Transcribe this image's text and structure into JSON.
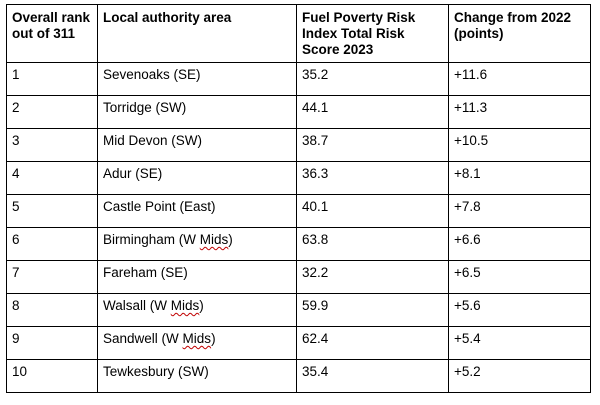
{
  "table": {
    "headers": [
      "Overall rank out of 311",
      "Local authority area",
      "Fuel Poverty Risk Index Total Risk Score 2023",
      "Change from 2022 (points)"
    ],
    "rows": [
      {
        "rank": "1",
        "area_name": "Sevenoaks",
        "area_suffix": " (SE)",
        "area_mark": "",
        "area_tail": "",
        "score": "35.2",
        "change": "+11.6"
      },
      {
        "rank": "2",
        "area_name": "Torridge",
        "area_suffix": " (SW)",
        "area_mark": "",
        "area_tail": "",
        "score": "44.1",
        "change": "+11.3"
      },
      {
        "rank": "3",
        "area_name": "Mid Devon",
        "area_suffix": " (SW)",
        "area_mark": "",
        "area_tail": "",
        "score": "38.7",
        "change": "+10.5"
      },
      {
        "rank": "4",
        "area_name": "Adur",
        "area_suffix": " (SE)",
        "area_mark": "",
        "area_tail": "",
        "score": "36.3",
        "change": "+8.1"
      },
      {
        "rank": "5",
        "area_name": "Castle Point",
        "area_suffix": " (East)",
        "area_mark": "",
        "area_tail": "",
        "score": "40.1",
        "change": "+7.8"
      },
      {
        "rank": "6",
        "area_name": "Birmingham",
        "area_suffix": " (W ",
        "area_mark": "Mids",
        "area_tail": ")",
        "score": "63.8",
        "change": "+6.6"
      },
      {
        "rank": "7",
        "area_name": "Fareham",
        "area_suffix": " (SE)",
        "area_mark": "",
        "area_tail": "",
        "score": "32.2",
        "change": "+6.5"
      },
      {
        "rank": "8",
        "area_name": "Walsall",
        "area_suffix": " (W ",
        "area_mark": "Mids",
        "area_tail": ")",
        "score": "59.9",
        "change": "+5.6"
      },
      {
        "rank": "9",
        "area_name": "Sandwell",
        "area_suffix": " (W ",
        "area_mark": "Mids",
        "area_tail": ")",
        "score": "62.4",
        "change": "+5.4"
      },
      {
        "rank": "10",
        "area_name": "Tewkesbury",
        "area_suffix": " (SW)",
        "area_mark": "",
        "area_tail": "",
        "score": "35.4",
        "change": "+5.2"
      }
    ]
  }
}
